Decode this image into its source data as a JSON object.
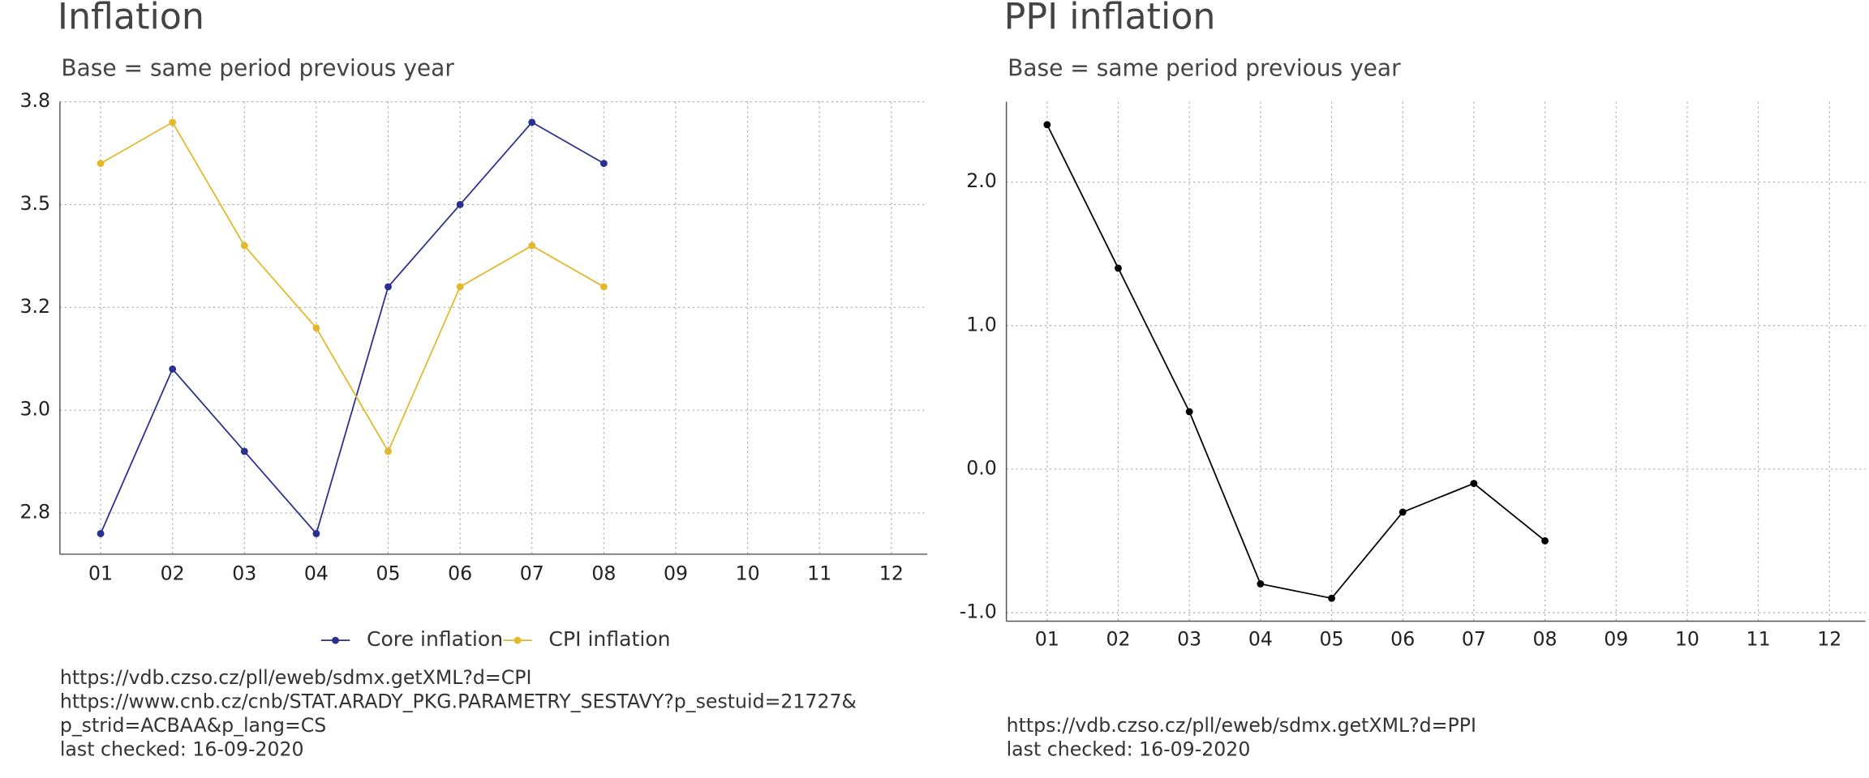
{
  "chart_data": [
    {
      "type": "line",
      "title": "Inflation",
      "subtitle": "Base = same period previous year",
      "categories": [
        "01",
        "02",
        "03",
        "04",
        "05",
        "06",
        "07",
        "08",
        "09",
        "10",
        "11",
        "12"
      ],
      "series": [
        {
          "name": "Core inflation",
          "color": "#2b2f8f",
          "values": [
            2.7,
            3.1,
            2.9,
            2.7,
            3.3,
            3.5,
            3.7,
            3.6,
            null,
            null,
            null,
            null
          ]
        },
        {
          "name": "CPI inflation",
          "color": "#e3b92b",
          "values": [
            3.6,
            3.7,
            3.4,
            3.2,
            2.9,
            3.3,
            3.4,
            3.3,
            null,
            null,
            null,
            null
          ]
        }
      ],
      "ylim": [
        2.65,
        3.75
      ],
      "yticks": [
        {
          "value": 2.75,
          "label": "2.8"
        },
        {
          "value": 3.0,
          "label": "3.0"
        },
        {
          "value": 3.25,
          "label": "3.2"
        },
        {
          "value": 3.5,
          "label": "3.5"
        },
        {
          "value": 3.75,
          "label": "3.8"
        }
      ],
      "grid": true,
      "legend": "bottom",
      "caption": [
        "https://vdb.czso.cz/pll/eweb/sdmx.getXML?d=CPI",
        "https://www.cnb.cz/cnb/STAT.ARADY_PKG.PARAMETRY_SESTAVY?p_sestuid=21727&",
        "p_strid=ACBAA&p_lang=CS",
        "last checked: 16-09-2020"
      ]
    },
    {
      "type": "line",
      "title": "PPI inflation",
      "subtitle": "Base = same period previous year",
      "categories": [
        "01",
        "02",
        "03",
        "04",
        "05",
        "06",
        "07",
        "08",
        "09",
        "10",
        "11",
        "12"
      ],
      "series": [
        {
          "color": "#000000",
          "values": [
            2.4,
            1.4,
            0.4,
            -0.8,
            -0.9,
            -0.3,
            -0.1,
            -0.5,
            null,
            null,
            null,
            null
          ]
        }
      ],
      "ylim": [
        -1.06,
        2.56
      ],
      "yticks": [
        {
          "value": -1,
          "label": "-1.0"
        },
        {
          "value": 0,
          "label": "0.0"
        },
        {
          "value": 1,
          "label": "1.0"
        },
        {
          "value": 2,
          "label": "2.0"
        }
      ],
      "grid": true,
      "caption": [
        "https://vdb.czso.cz/pll/eweb/sdmx.getXML?d=PPI",
        "last checked: 16-09-2020"
      ]
    }
  ]
}
